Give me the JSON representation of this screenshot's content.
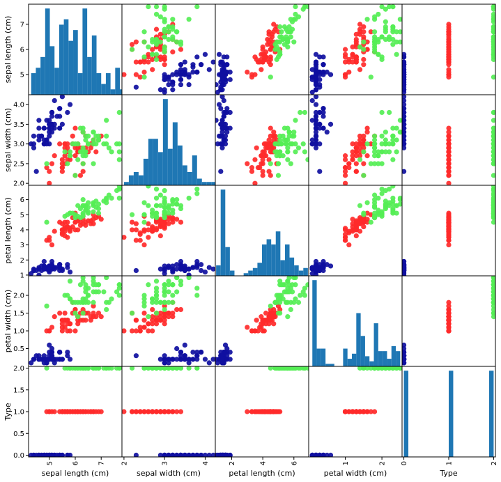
{
  "colors": {
    "setosa": "#0f0f9f",
    "versicolor": "#ff2a2a",
    "virginica": "#55ee55",
    "hist": "#1f77b4"
  },
  "chart_data": {
    "type": "scatter-matrix",
    "variables": [
      "sepal length (cm)",
      "sepal width (cm)",
      "petal length (cm)",
      "petal width (cm)",
      "Type"
    ],
    "ranges": [
      [
        4.2,
        7.8
      ],
      [
        1.95,
        4.25
      ],
      [
        0.95,
        6.95
      ],
      [
        0.0,
        2.55
      ],
      [
        -0.04,
        2.04
      ]
    ],
    "ticks": [
      [
        {
          "v": 5,
          "label": "5"
        },
        {
          "v": 6,
          "label": "6"
        },
        {
          "v": 7,
          "label": "7"
        }
      ],
      [
        {
          "v": 2,
          "label": "2.0"
        },
        {
          "v": 2.5,
          "label": "2.5"
        },
        {
          "v": 3,
          "label": "3.0"
        },
        {
          "v": 3.5,
          "label": "3.5"
        },
        {
          "v": 4,
          "label": "4.0"
        }
      ],
      [
        {
          "v": 1,
          "label": "1"
        },
        {
          "v": 2,
          "label": "2"
        },
        {
          "v": 3,
          "label": "3"
        },
        {
          "v": 4,
          "label": "4"
        },
        {
          "v": 5,
          "label": "5"
        },
        {
          "v": 6,
          "label": "6"
        }
      ],
      [
        {
          "v": 0.5,
          "label": "0.5"
        },
        {
          "v": 1,
          "label": "1.0"
        },
        {
          "v": 1.5,
          "label": "1.5"
        },
        {
          "v": 2,
          "label": "2.0"
        }
      ],
      [
        {
          "v": 0,
          "label": "0.0"
        },
        {
          "v": 0.5,
          "label": "0.5"
        },
        {
          "v": 1,
          "label": "1.0"
        },
        {
          "v": 1.5,
          "label": "1.5"
        },
        {
          "v": 2,
          "label": "2.0"
        }
      ]
    ],
    "bottom_ticks": [
      [
        {
          "v": 5,
          "label": "5"
        },
        {
          "v": 6,
          "label": "6"
        },
        {
          "v": 7,
          "label": "7"
        }
      ],
      [
        {
          "v": 2,
          "label": "2"
        },
        {
          "v": 3,
          "label": "3"
        },
        {
          "v": 4,
          "label": "4"
        }
      ],
      [
        {
          "v": 2,
          "label": "2"
        },
        {
          "v": 4,
          "label": "4"
        },
        {
          "v": 6,
          "label": "6"
        }
      ],
      [
        {
          "v": 1,
          "label": "1"
        },
        {
          "v": 2,
          "label": "2"
        }
      ],
      [
        {
          "v": 0,
          "label": "0"
        },
        {
          "v": 1,
          "label": "1"
        },
        {
          "v": 2,
          "label": "2"
        }
      ]
    ],
    "observations": [
      [
        5.1,
        3.5,
        1.4,
        0.2,
        0
      ],
      [
        4.9,
        3.0,
        1.4,
        0.2,
        0
      ],
      [
        4.7,
        3.2,
        1.3,
        0.2,
        0
      ],
      [
        4.6,
        3.1,
        1.5,
        0.2,
        0
      ],
      [
        5.0,
        3.6,
        1.4,
        0.2,
        0
      ],
      [
        5.4,
        3.9,
        1.7,
        0.4,
        0
      ],
      [
        4.6,
        3.4,
        1.4,
        0.3,
        0
      ],
      [
        5.0,
        3.4,
        1.5,
        0.2,
        0
      ],
      [
        4.4,
        2.9,
        1.4,
        0.2,
        0
      ],
      [
        4.9,
        3.1,
        1.5,
        0.1,
        0
      ],
      [
        5.4,
        3.7,
        1.5,
        0.2,
        0
      ],
      [
        4.8,
        3.4,
        1.6,
        0.2,
        0
      ],
      [
        4.8,
        3.0,
        1.4,
        0.1,
        0
      ],
      [
        4.3,
        3.0,
        1.1,
        0.1,
        0
      ],
      [
        5.8,
        4.0,
        1.2,
        0.2,
        0
      ],
      [
        5.7,
        4.4,
        1.5,
        0.4,
        0
      ],
      [
        5.4,
        3.9,
        1.3,
        0.4,
        0
      ],
      [
        5.1,
        3.5,
        1.4,
        0.3,
        0
      ],
      [
        5.7,
        3.8,
        1.7,
        0.3,
        0
      ],
      [
        5.1,
        3.8,
        1.5,
        0.3,
        0
      ],
      [
        5.4,
        3.4,
        1.7,
        0.2,
        0
      ],
      [
        5.1,
        3.7,
        1.5,
        0.4,
        0
      ],
      [
        4.6,
        3.6,
        1.0,
        0.2,
        0
      ],
      [
        5.1,
        3.3,
        1.7,
        0.5,
        0
      ],
      [
        4.8,
        3.4,
        1.9,
        0.2,
        0
      ],
      [
        5.0,
        3.0,
        1.6,
        0.2,
        0
      ],
      [
        5.0,
        3.4,
        1.6,
        0.4,
        0
      ],
      [
        5.2,
        3.5,
        1.5,
        0.2,
        0
      ],
      [
        5.2,
        3.4,
        1.4,
        0.2,
        0
      ],
      [
        4.7,
        3.2,
        1.6,
        0.2,
        0
      ],
      [
        4.8,
        3.1,
        1.6,
        0.2,
        0
      ],
      [
        5.4,
        3.4,
        1.5,
        0.4,
        0
      ],
      [
        5.2,
        4.1,
        1.5,
        0.1,
        0
      ],
      [
        5.5,
        4.2,
        1.4,
        0.2,
        0
      ],
      [
        4.9,
        3.1,
        1.5,
        0.2,
        0
      ],
      [
        5.0,
        3.2,
        1.2,
        0.2,
        0
      ],
      [
        5.5,
        3.5,
        1.3,
        0.2,
        0
      ],
      [
        4.9,
        3.6,
        1.4,
        0.1,
        0
      ],
      [
        4.4,
        3.0,
        1.3,
        0.2,
        0
      ],
      [
        5.1,
        3.4,
        1.5,
        0.2,
        0
      ],
      [
        5.0,
        3.5,
        1.3,
        0.3,
        0
      ],
      [
        4.5,
        2.3,
        1.3,
        0.3,
        0
      ],
      [
        4.4,
        3.2,
        1.3,
        0.2,
        0
      ],
      [
        5.0,
        3.5,
        1.6,
        0.6,
        0
      ],
      [
        5.1,
        3.8,
        1.9,
        0.4,
        0
      ],
      [
        4.8,
        3.0,
        1.4,
        0.3,
        0
      ],
      [
        5.1,
        3.8,
        1.6,
        0.2,
        0
      ],
      [
        4.6,
        3.2,
        1.4,
        0.2,
        0
      ],
      [
        5.3,
        3.7,
        1.5,
        0.2,
        0
      ],
      [
        5.0,
        3.3,
        1.4,
        0.2,
        0
      ],
      [
        7.0,
        3.2,
        4.7,
        1.4,
        1
      ],
      [
        6.4,
        3.2,
        4.5,
        1.5,
        1
      ],
      [
        6.9,
        3.1,
        4.9,
        1.5,
        1
      ],
      [
        5.5,
        2.3,
        4.0,
        1.3,
        1
      ],
      [
        6.5,
        2.8,
        4.6,
        1.5,
        1
      ],
      [
        5.7,
        2.8,
        4.5,
        1.3,
        1
      ],
      [
        6.3,
        3.3,
        4.7,
        1.6,
        1
      ],
      [
        4.9,
        2.4,
        3.3,
        1.0,
        1
      ],
      [
        6.6,
        2.9,
        4.6,
        1.3,
        1
      ],
      [
        5.2,
        2.7,
        3.9,
        1.4,
        1
      ],
      [
        5.0,
        2.0,
        3.5,
        1.0,
        1
      ],
      [
        5.9,
        3.0,
        4.2,
        1.5,
        1
      ],
      [
        6.0,
        2.2,
        4.0,
        1.0,
        1
      ],
      [
        6.1,
        2.9,
        4.7,
        1.4,
        1
      ],
      [
        5.6,
        2.9,
        3.6,
        1.3,
        1
      ],
      [
        6.7,
        3.1,
        4.4,
        1.4,
        1
      ],
      [
        5.6,
        3.0,
        4.5,
        1.5,
        1
      ],
      [
        5.8,
        2.7,
        4.1,
        1.0,
        1
      ],
      [
        6.2,
        2.2,
        4.5,
        1.5,
        1
      ],
      [
        5.6,
        2.5,
        3.9,
        1.1,
        1
      ],
      [
        5.9,
        3.2,
        4.8,
        1.8,
        1
      ],
      [
        6.1,
        2.8,
        4.0,
        1.3,
        1
      ],
      [
        6.3,
        2.5,
        4.9,
        1.5,
        1
      ],
      [
        6.1,
        2.8,
        4.7,
        1.2,
        1
      ],
      [
        6.4,
        2.9,
        4.3,
        1.3,
        1
      ],
      [
        6.6,
        3.0,
        4.4,
        1.4,
        1
      ],
      [
        6.8,
        2.8,
        4.8,
        1.4,
        1
      ],
      [
        6.7,
        3.0,
        5.0,
        1.7,
        1
      ],
      [
        6.0,
        2.9,
        4.5,
        1.5,
        1
      ],
      [
        5.7,
        2.6,
        3.5,
        1.0,
        1
      ],
      [
        5.5,
        2.4,
        3.8,
        1.1,
        1
      ],
      [
        5.5,
        2.4,
        3.7,
        1.0,
        1
      ],
      [
        5.8,
        2.7,
        3.9,
        1.2,
        1
      ],
      [
        6.0,
        2.7,
        5.1,
        1.6,
        1
      ],
      [
        5.4,
        3.0,
        4.5,
        1.5,
        1
      ],
      [
        6.0,
        3.4,
        4.5,
        1.6,
        1
      ],
      [
        6.7,
        3.1,
        4.7,
        1.5,
        1
      ],
      [
        6.3,
        2.3,
        4.4,
        1.3,
        1
      ],
      [
        5.6,
        3.0,
        4.1,
        1.3,
        1
      ],
      [
        5.5,
        2.5,
        4.0,
        1.3,
        1
      ],
      [
        5.5,
        2.6,
        4.4,
        1.2,
        1
      ],
      [
        6.1,
        3.0,
        4.6,
        1.4,
        1
      ],
      [
        5.8,
        2.6,
        4.0,
        1.2,
        1
      ],
      [
        5.0,
        2.3,
        3.3,
        1.0,
        1
      ],
      [
        5.6,
        2.7,
        4.2,
        1.3,
        1
      ],
      [
        5.7,
        3.0,
        4.2,
        1.2,
        1
      ],
      [
        5.7,
        2.9,
        4.2,
        1.3,
        1
      ],
      [
        6.2,
        2.9,
        4.3,
        1.3,
        1
      ],
      [
        5.1,
        2.5,
        3.0,
        1.1,
        1
      ],
      [
        5.7,
        2.8,
        4.1,
        1.3,
        1
      ],
      [
        6.3,
        3.3,
        6.0,
        2.5,
        2
      ],
      [
        5.8,
        2.7,
        5.1,
        1.9,
        2
      ],
      [
        7.1,
        3.0,
        5.9,
        2.1,
        2
      ],
      [
        6.3,
        2.9,
        5.6,
        1.8,
        2
      ],
      [
        6.5,
        3.0,
        5.8,
        2.2,
        2
      ],
      [
        7.6,
        3.0,
        6.6,
        2.1,
        2
      ],
      [
        4.9,
        2.5,
        4.5,
        1.7,
        2
      ],
      [
        7.3,
        2.9,
        6.3,
        1.8,
        2
      ],
      [
        6.7,
        2.5,
        5.8,
        1.8,
        2
      ],
      [
        7.2,
        3.6,
        6.1,
        2.5,
        2
      ],
      [
        6.5,
        3.2,
        5.1,
        2.0,
        2
      ],
      [
        6.4,
        2.7,
        5.3,
        1.9,
        2
      ],
      [
        6.8,
        3.0,
        5.5,
        2.1,
        2
      ],
      [
        5.7,
        2.5,
        5.0,
        2.0,
        2
      ],
      [
        5.8,
        2.8,
        5.1,
        2.4,
        2
      ],
      [
        6.4,
        3.2,
        5.3,
        2.3,
        2
      ],
      [
        6.5,
        3.0,
        5.5,
        1.8,
        2
      ],
      [
        7.7,
        3.8,
        6.7,
        2.2,
        2
      ],
      [
        7.7,
        2.6,
        6.9,
        2.3,
        2
      ],
      [
        6.0,
        2.2,
        5.0,
        1.5,
        2
      ],
      [
        6.9,
        3.2,
        5.7,
        2.3,
        2
      ],
      [
        5.6,
        2.8,
        4.9,
        2.0,
        2
      ],
      [
        7.7,
        2.8,
        6.7,
        2.0,
        2
      ],
      [
        6.3,
        2.7,
        4.9,
        1.8,
        2
      ],
      [
        6.7,
        3.3,
        5.7,
        2.1,
        2
      ],
      [
        7.2,
        3.2,
        6.0,
        1.8,
        2
      ],
      [
        6.2,
        2.8,
        4.8,
        1.8,
        2
      ],
      [
        6.1,
        3.0,
        4.9,
        1.8,
        2
      ],
      [
        6.4,
        2.8,
        5.6,
        2.1,
        2
      ],
      [
        7.2,
        3.0,
        5.8,
        1.6,
        2
      ],
      [
        7.4,
        2.8,
        6.1,
        1.9,
        2
      ],
      [
        7.9,
        3.8,
        6.4,
        2.0,
        2
      ],
      [
        6.4,
        2.8,
        5.6,
        2.2,
        2
      ],
      [
        6.3,
        2.8,
        5.1,
        1.5,
        2
      ],
      [
        6.1,
        2.6,
        5.6,
        1.4,
        2
      ],
      [
        7.7,
        3.0,
        6.1,
        2.3,
        2
      ],
      [
        6.3,
        3.4,
        5.6,
        2.4,
        2
      ],
      [
        6.4,
        3.1,
        5.5,
        1.8,
        2
      ],
      [
        6.0,
        3.0,
        4.8,
        1.8,
        2
      ],
      [
        6.9,
        3.1,
        5.4,
        2.1,
        2
      ],
      [
        6.7,
        3.1,
        5.6,
        2.4,
        2
      ],
      [
        6.9,
        3.1,
        5.1,
        2.3,
        2
      ],
      [
        5.8,
        2.7,
        5.1,
        1.9,
        2
      ],
      [
        6.8,
        3.2,
        5.9,
        2.3,
        2
      ],
      [
        6.7,
        3.3,
        5.7,
        2.5,
        2
      ],
      [
        6.7,
        3.0,
        5.2,
        2.3,
        2
      ],
      [
        6.3,
        2.5,
        5.0,
        1.9,
        2
      ],
      [
        6.5,
        3.0,
        5.2,
        2.0,
        2
      ],
      [
        6.2,
        3.4,
        5.4,
        2.3,
        2
      ],
      [
        5.9,
        3.0,
        5.1,
        1.8,
        2
      ]
    ]
  }
}
